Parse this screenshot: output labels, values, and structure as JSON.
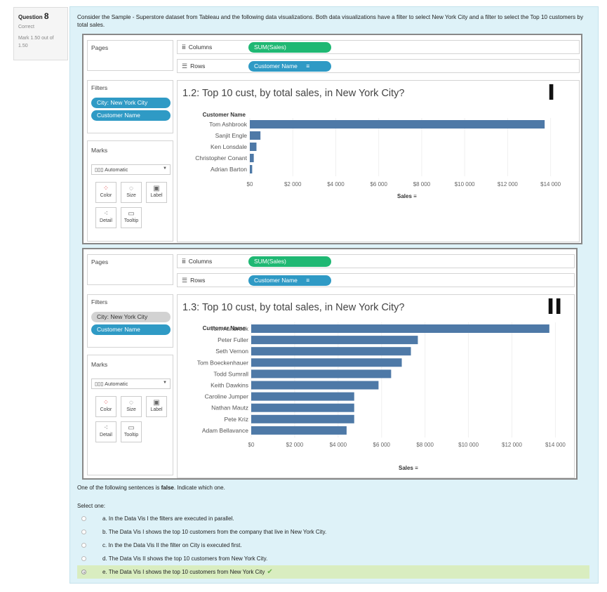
{
  "question_info": {
    "label": "Question",
    "number": "8",
    "state": "Correct",
    "mark": "Mark 1.50 out of 1.50"
  },
  "question_text": "Consider the Sample - Superstore dataset from Tableau and the following data visualizations. Both data visualizations have a filter to select New York City and a filter to select the Top 10 customers by total sales.",
  "viz1": {
    "pages_label": "Pages",
    "filters_label": "Filters",
    "filters": [
      "City: New York City",
      "Customer Name"
    ],
    "marks_label": "Marks",
    "mark_type": "Automatic",
    "mark_buttons": [
      "Color",
      "Size",
      "Label",
      "Detail",
      "Tooltip"
    ],
    "columns_label": "Columns",
    "rows_label": "Rows",
    "columns_pill": "SUM(Sales)",
    "rows_pill": "Customer Name",
    "roman": "I",
    "chart_data": {
      "type": "bar",
      "title": "1.2: Top 10 cust, by total sales, in New York City?",
      "ylabel": "Customer Name",
      "xlabel": "Sales",
      "categories": [
        "Tom Ashbrook",
        "Sanjit Engle",
        "Ken Lonsdale",
        "Christopher Conant",
        "Adrian Barton"
      ],
      "values": [
        13723,
        495,
        309,
        184,
        110
      ],
      "xlim": [
        0,
        14600
      ],
      "ticks": [
        "$0",
        "$2 000",
        "$4 000",
        "$6 000",
        "$8 000",
        "$10 000",
        "$12 000",
        "$14 000"
      ],
      "tick_values": [
        0,
        2000,
        4000,
        6000,
        8000,
        10000,
        12000,
        14000
      ],
      "bar_color": "#4e79a7"
    }
  },
  "viz2": {
    "pages_label": "Pages",
    "filters_label": "Filters",
    "filters": [
      "City: New York City",
      "Customer Name"
    ],
    "marks_label": "Marks",
    "mark_type": "Automatic",
    "mark_buttons": [
      "Color",
      "Size",
      "Label",
      "Detail",
      "Tooltip"
    ],
    "columns_label": "Columns",
    "rows_label": "Rows",
    "columns_pill": "SUM(Sales)",
    "rows_pill": "Customer Name",
    "roman": "II",
    "chart_data": {
      "type": "bar",
      "title": "1.3: Top 10 cust, by total sales, in New York City?",
      "ylabel": "Customer Name",
      "xlabel": "Sales",
      "categories": [
        "Tom Ashbrook",
        "Peter Fuller",
        "Seth Vernon",
        "Tom Boeckenhauer",
        "Todd Sumrall",
        "Keith Dawkins",
        "Caroline Jumper",
        "Nathan Mautz",
        "Pete Kriz",
        "Adam Bellavance"
      ],
      "values": [
        13723,
        7670,
        7350,
        6930,
        6440,
        5860,
        4740,
        4740,
        4740,
        4390
      ],
      "xlim": [
        0,
        14600
      ],
      "ticks": [
        "$0",
        "$2 000",
        "$4 000",
        "$6 000",
        "$8 000",
        "$10 000",
        "$12 000",
        "$14 000"
      ],
      "tick_values": [
        0,
        2000,
        4000,
        6000,
        8000,
        10000,
        12000,
        14000
      ],
      "bar_color": "#4e79a7"
    }
  },
  "answers": {
    "intro_pre": "One of the following sentences is ",
    "intro_bold": "false",
    "intro_post": ". Indicate which one.",
    "select_label": "Select one:",
    "options": [
      "a. In the Data Vis I the filters are executed in parallel.",
      "b. The Data Vis I shows the top 10 customers from the company that live in New York City.",
      "c. In the the Data Vis II the filter on City is executed first.",
      "d. The Data Vis II shows the top 10 customers from New York City.",
      "e. The Data Vis I shows the top 10 customers from New York City"
    ],
    "selected_index": 4,
    "check_icon": "checkmark-icon"
  }
}
